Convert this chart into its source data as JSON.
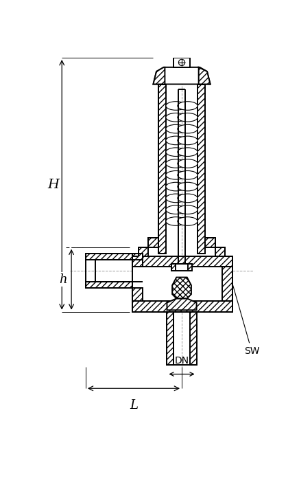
{
  "bg_color": "#ffffff",
  "line_color": "#000000",
  "fig_width": 4.36,
  "fig_height": 7.0,
  "dpi": 100,
  "labels": {
    "H": "H",
    "h": "h",
    "DN": "DN",
    "L": "L",
    "SW": "SW"
  }
}
